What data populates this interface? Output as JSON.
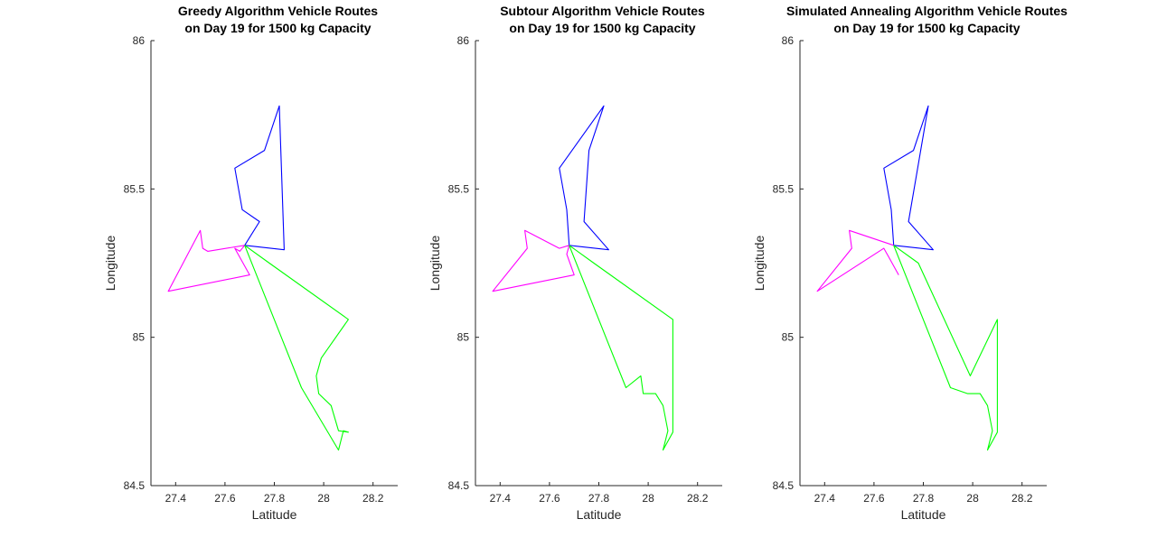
{
  "colors": {
    "background": "#ffffff",
    "axis": "#262626",
    "route_blue": "#0000ff",
    "route_green": "#00ff00",
    "route_magenta": "#ff00ff"
  },
  "chart_data": [
    {
      "type": "line",
      "title": [
        "Greedy Algorithm Vehicle Routes",
        "on Day 19 for 1500 kg Capacity"
      ],
      "xlabel": "Latitude",
      "ylabel": "Longitude",
      "xlim": [
        27.3,
        28.3
      ],
      "ylim": [
        84.5,
        86
      ],
      "xticks": [
        27.4,
        27.6,
        27.8,
        28,
        28.2
      ],
      "xticklabels": [
        "27.4",
        "27.6",
        "27.8",
        "28",
        "28.2"
      ],
      "yticks": [
        84.5,
        85,
        85.5,
        86
      ],
      "yticklabels": [
        "84.5",
        "85",
        "85.5",
        "86"
      ],
      "grid": false,
      "series": [
        {
          "color": "#0000ff",
          "x": [
            27.68,
            27.84,
            27.82,
            27.76,
            27.64,
            27.67,
            27.74,
            27.68
          ],
          "y": [
            85.31,
            85.295,
            85.78,
            85.63,
            85.57,
            85.43,
            85.39,
            85.31
          ]
        },
        {
          "color": "#ff00ff",
          "x": [
            27.68,
            27.66,
            27.64,
            27.7,
            27.37,
            27.5,
            27.51,
            27.53,
            27.68
          ],
          "y": [
            85.31,
            85.29,
            85.3,
            85.21,
            85.155,
            85.36,
            85.3,
            85.29,
            85.31
          ]
        },
        {
          "color": "#00ff00",
          "x": [
            27.68,
            27.78,
            28.1,
            27.99,
            27.97,
            27.98,
            28.03,
            28.06,
            28.1,
            28.08,
            28.06,
            27.91,
            27.68
          ],
          "y": [
            85.31,
            85.25,
            85.06,
            84.93,
            84.87,
            84.81,
            84.77,
            84.685,
            84.68,
            84.685,
            84.62,
            84.83,
            85.31
          ]
        }
      ]
    },
    {
      "type": "line",
      "title": [
        "Subtour Algorithm Vehicle Routes",
        "on Day 19 for 1500 kg Capacity"
      ],
      "xlabel": "Latitude",
      "ylabel": "Longitude",
      "xlim": [
        27.3,
        28.3
      ],
      "ylim": [
        84.5,
        86
      ],
      "xticks": [
        27.4,
        27.6,
        27.8,
        28,
        28.2
      ],
      "xticklabels": [
        "27.4",
        "27.6",
        "27.8",
        "28",
        "28.2"
      ],
      "yticks": [
        84.5,
        85,
        85.5,
        86
      ],
      "yticklabels": [
        "84.5",
        "85",
        "85.5",
        "86"
      ],
      "grid": false,
      "series": [
        {
          "color": "#0000ff",
          "x": [
            27.68,
            27.84,
            27.74,
            27.76,
            27.82,
            27.64,
            27.67,
            27.68
          ],
          "y": [
            85.31,
            85.295,
            85.39,
            85.63,
            85.78,
            85.57,
            85.43,
            85.31
          ]
        },
        {
          "color": "#ff00ff",
          "x": [
            27.68,
            27.64,
            27.5,
            27.51,
            27.37,
            27.7,
            27.67,
            27.68
          ],
          "y": [
            85.31,
            85.3,
            85.36,
            85.3,
            85.155,
            85.21,
            85.28,
            85.31
          ]
        },
        {
          "color": "#00ff00",
          "x": [
            27.68,
            27.78,
            28.1,
            28.1,
            28.06,
            28.08,
            28.06,
            28.03,
            27.98,
            27.97,
            27.91,
            27.68
          ],
          "y": [
            85.31,
            85.25,
            85.06,
            84.68,
            84.62,
            84.685,
            84.77,
            84.81,
            84.81,
            84.87,
            84.83,
            85.31
          ]
        }
      ]
    },
    {
      "type": "line",
      "title": [
        "Simulated Annealing Algorithm Vehicle Routes",
        "on Day 19 for 1500 kg Capacity"
      ],
      "xlabel": "Latitude",
      "ylabel": "Longitude",
      "xlim": [
        27.3,
        28.3
      ],
      "ylim": [
        84.5,
        86
      ],
      "xticks": [
        27.4,
        27.6,
        27.8,
        28,
        28.2
      ],
      "xticklabels": [
        "27.4",
        "27.6",
        "27.8",
        "28",
        "28.2"
      ],
      "yticks": [
        84.5,
        85,
        85.5,
        86
      ],
      "yticklabels": [
        "84.5",
        "85",
        "85.5",
        "86"
      ],
      "grid": false,
      "series": [
        {
          "color": "#0000ff",
          "x": [
            27.68,
            27.84,
            27.74,
            27.82,
            27.76,
            27.64,
            27.67,
            27.68
          ],
          "y": [
            85.31,
            85.295,
            85.39,
            85.78,
            85.63,
            85.57,
            85.43,
            85.31
          ]
        },
        {
          "color": "#ff00ff",
          "x": [
            27.68,
            27.5,
            27.51,
            27.37,
            27.64,
            27.66,
            27.7
          ],
          "y": [
            85.31,
            85.36,
            85.3,
            85.155,
            85.3,
            85.27,
            85.21
          ]
        },
        {
          "color": "#00ff00",
          "x": [
            27.68,
            27.78,
            27.99,
            28.1,
            28.1,
            28.06,
            28.08,
            28.06,
            28.03,
            27.98,
            27.91,
            27.68
          ],
          "y": [
            85.31,
            85.25,
            84.87,
            85.06,
            84.68,
            84.62,
            84.685,
            84.77,
            84.81,
            84.81,
            84.83,
            85.31
          ]
        }
      ]
    }
  ]
}
